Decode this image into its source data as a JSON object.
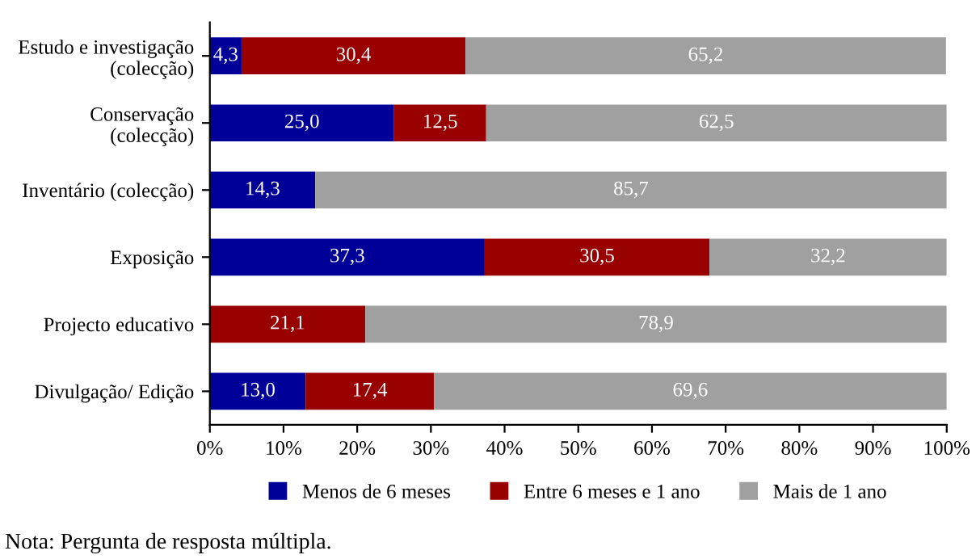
{
  "chart_data": {
    "type": "bar",
    "orientation": "horizontal",
    "stacked": true,
    "categories": [
      "Estudo e investigação\n(colecção)",
      "Conservação\n(colecção)",
      "Inventário (colecção)",
      "Exposição",
      "Projecto educativo",
      "Divulgação/ Edição"
    ],
    "series": [
      {
        "name": "Menos de 6 meses",
        "color": "#000099",
        "values": [
          4.3,
          25.0,
          14.3,
          37.3,
          null,
          13.0
        ],
        "value_labels": [
          "4,3",
          "25,0",
          "14,3",
          "37,3",
          null,
          "13,0"
        ]
      },
      {
        "name": "Entre 6 meses e 1 ano",
        "color": "#990000",
        "values": [
          30.4,
          12.5,
          null,
          30.5,
          21.1,
          17.4
        ],
        "value_labels": [
          "30,4",
          "12,5",
          null,
          "30,5",
          "21,1",
          "17,4"
        ]
      },
      {
        "name": "Mais de 1 ano",
        "color": "#a0a0a0",
        "values": [
          65.2,
          62.5,
          85.7,
          32.2,
          78.9,
          69.6
        ],
        "value_labels": [
          "65,2",
          "62,5",
          "85,7",
          "32,2",
          "78,9",
          "69,6"
        ]
      }
    ],
    "xlim": [
      0,
      100
    ],
    "xticks": [
      {
        "value": 0,
        "label": "0%"
      },
      {
        "value": 10,
        "label": "10%"
      },
      {
        "value": 20,
        "label": "20%"
      },
      {
        "value": 30,
        "label": "30%"
      },
      {
        "value": 40,
        "label": "40%"
      },
      {
        "value": 50,
        "label": "50%"
      },
      {
        "value": 60,
        "label": "60%"
      },
      {
        "value": 70,
        "label": "70%"
      },
      {
        "value": 80,
        "label": "80%"
      },
      {
        "value": 90,
        "label": "90%"
      },
      {
        "value": 100,
        "label": "100%"
      }
    ],
    "legend": "bottom",
    "annotations": [
      "Nota: Pergunta de resposta múltipla."
    ]
  }
}
